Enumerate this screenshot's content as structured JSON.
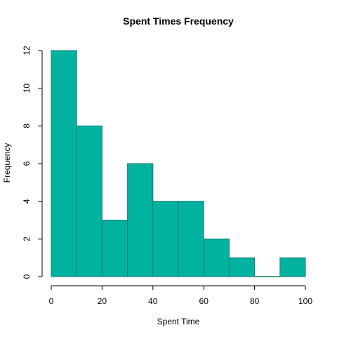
{
  "chart_data": {
    "type": "bar",
    "title": "Spent Times Frequency",
    "xlabel": "Spent Time",
    "ylabel": "Frequency",
    "bins": [
      {
        "from": 0,
        "to": 10,
        "count": 12
      },
      {
        "from": 10,
        "to": 20,
        "count": 8
      },
      {
        "from": 20,
        "to": 30,
        "count": 3
      },
      {
        "from": 30,
        "to": 40,
        "count": 6
      },
      {
        "from": 40,
        "to": 50,
        "count": 4
      },
      {
        "from": 50,
        "to": 60,
        "count": 4
      },
      {
        "from": 60,
        "to": 70,
        "count": 2
      },
      {
        "from": 70,
        "to": 80,
        "count": 1
      },
      {
        "from": 80,
        "to": 90,
        "count": 0
      },
      {
        "from": 90,
        "to": 100,
        "count": 1
      }
    ],
    "xlim": [
      0,
      100
    ],
    "ylim": [
      0,
      12
    ],
    "x_ticks": [
      0,
      20,
      40,
      60,
      80,
      100
    ],
    "y_ticks": [
      0,
      2,
      4,
      6,
      8,
      10,
      12
    ],
    "grid": false,
    "colors": {
      "bar_fill": "#00b3a0",
      "bar_edge": "#1e7a70"
    }
  }
}
